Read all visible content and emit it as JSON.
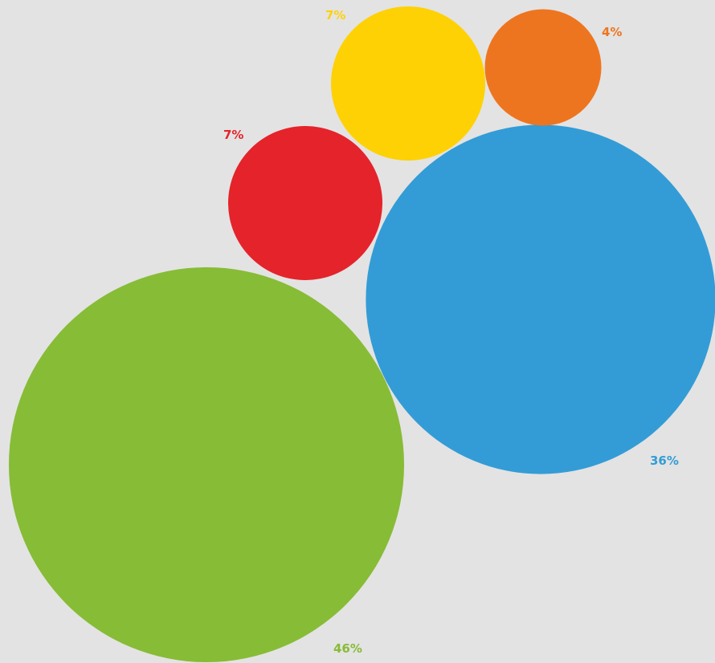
{
  "chart_data": {
    "type": "bubble",
    "series": [
      {
        "label": "46%",
        "value": 46,
        "color": "#87bc36"
      },
      {
        "label": "36%",
        "value": 36,
        "color": "#339cd6"
      },
      {
        "label": "7%",
        "value": 7,
        "color": "#e5232a"
      },
      {
        "label": "7%",
        "value": 7,
        "color": "#fed105"
      },
      {
        "label": "4%",
        "value": 4,
        "color": "#ee751f"
      }
    ]
  }
}
